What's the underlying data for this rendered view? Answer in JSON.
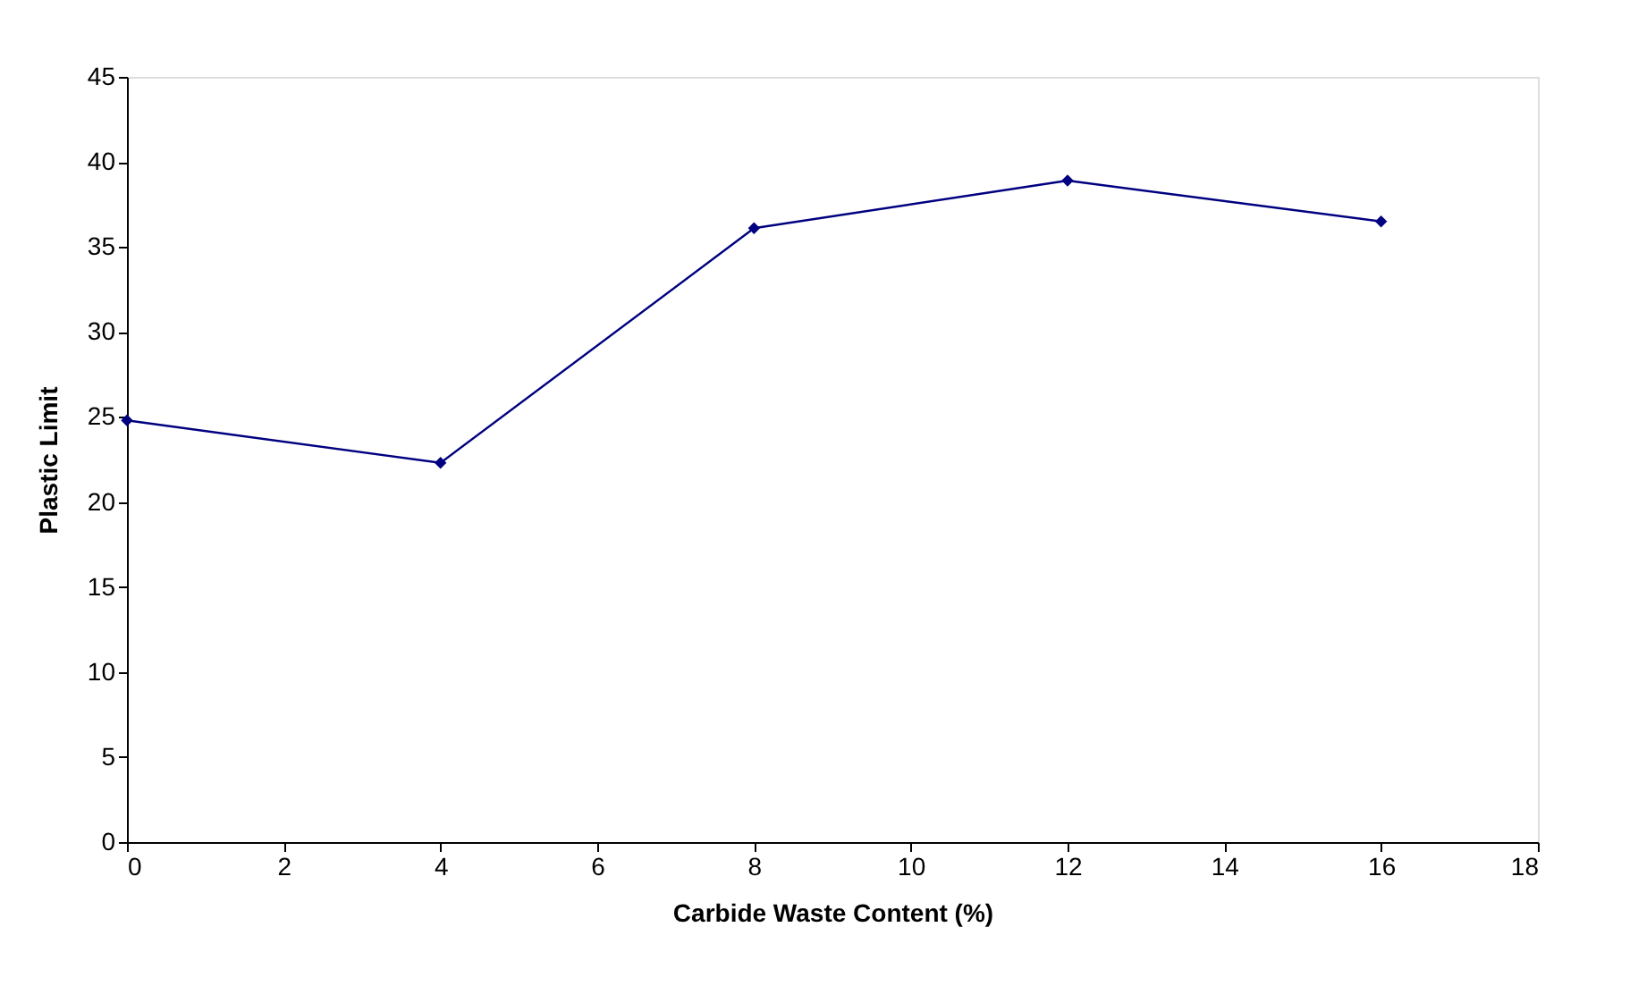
{
  "chart_data": {
    "type": "line",
    "xlabel": "Carbide Waste Content (%)",
    "ylabel": "Plastic Limit",
    "x": [
      0,
      4,
      8,
      12,
      16
    ],
    "series": [
      {
        "color": "#000080",
        "values": [
          24.8,
          22.3,
          36.1,
          38.9,
          36.5
        ]
      }
    ],
    "xlim": [
      0,
      18
    ],
    "xticks": [
      0,
      2,
      4,
      6,
      8,
      10,
      12,
      14,
      16,
      18
    ],
    "ylim": [
      0,
      45
    ],
    "yticks": [
      0,
      5,
      10,
      15,
      20,
      25,
      30,
      35,
      40,
      45
    ],
    "grid": false,
    "marker": "diamond",
    "line_style": "solid"
  }
}
